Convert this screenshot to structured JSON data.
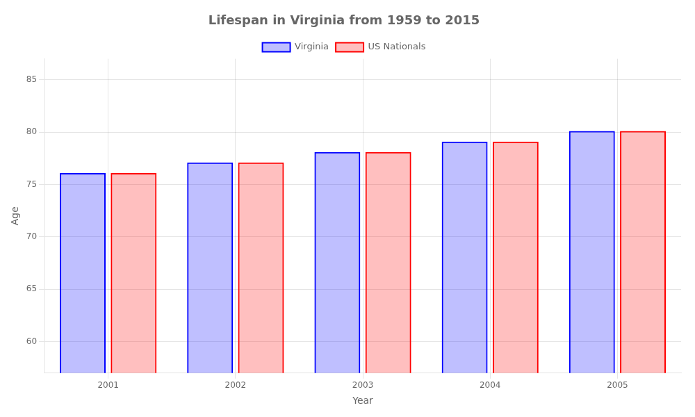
{
  "chart_data": {
    "type": "bar",
    "title": "Lifespan in Virginia from 1959 to 2015",
    "x_label": "Year",
    "y_label": "Age",
    "categories": [
      "2001",
      "2002",
      "2003",
      "2004",
      "2005"
    ],
    "series": [
      {
        "name": "Virginia",
        "color": "#0000ff",
        "values": [
          76.1,
          77.1,
          78.1,
          79.1,
          80.1
        ]
      },
      {
        "name": "US Nationals",
        "color": "#ff0000",
        "values": [
          76.1,
          77.1,
          78.1,
          79.1,
          80.1
        ]
      }
    ],
    "ylim": [
      57,
      87
    ],
    "yticks": [
      60,
      65,
      70,
      75,
      80,
      85
    ],
    "grid": true,
    "legend": "top"
  }
}
